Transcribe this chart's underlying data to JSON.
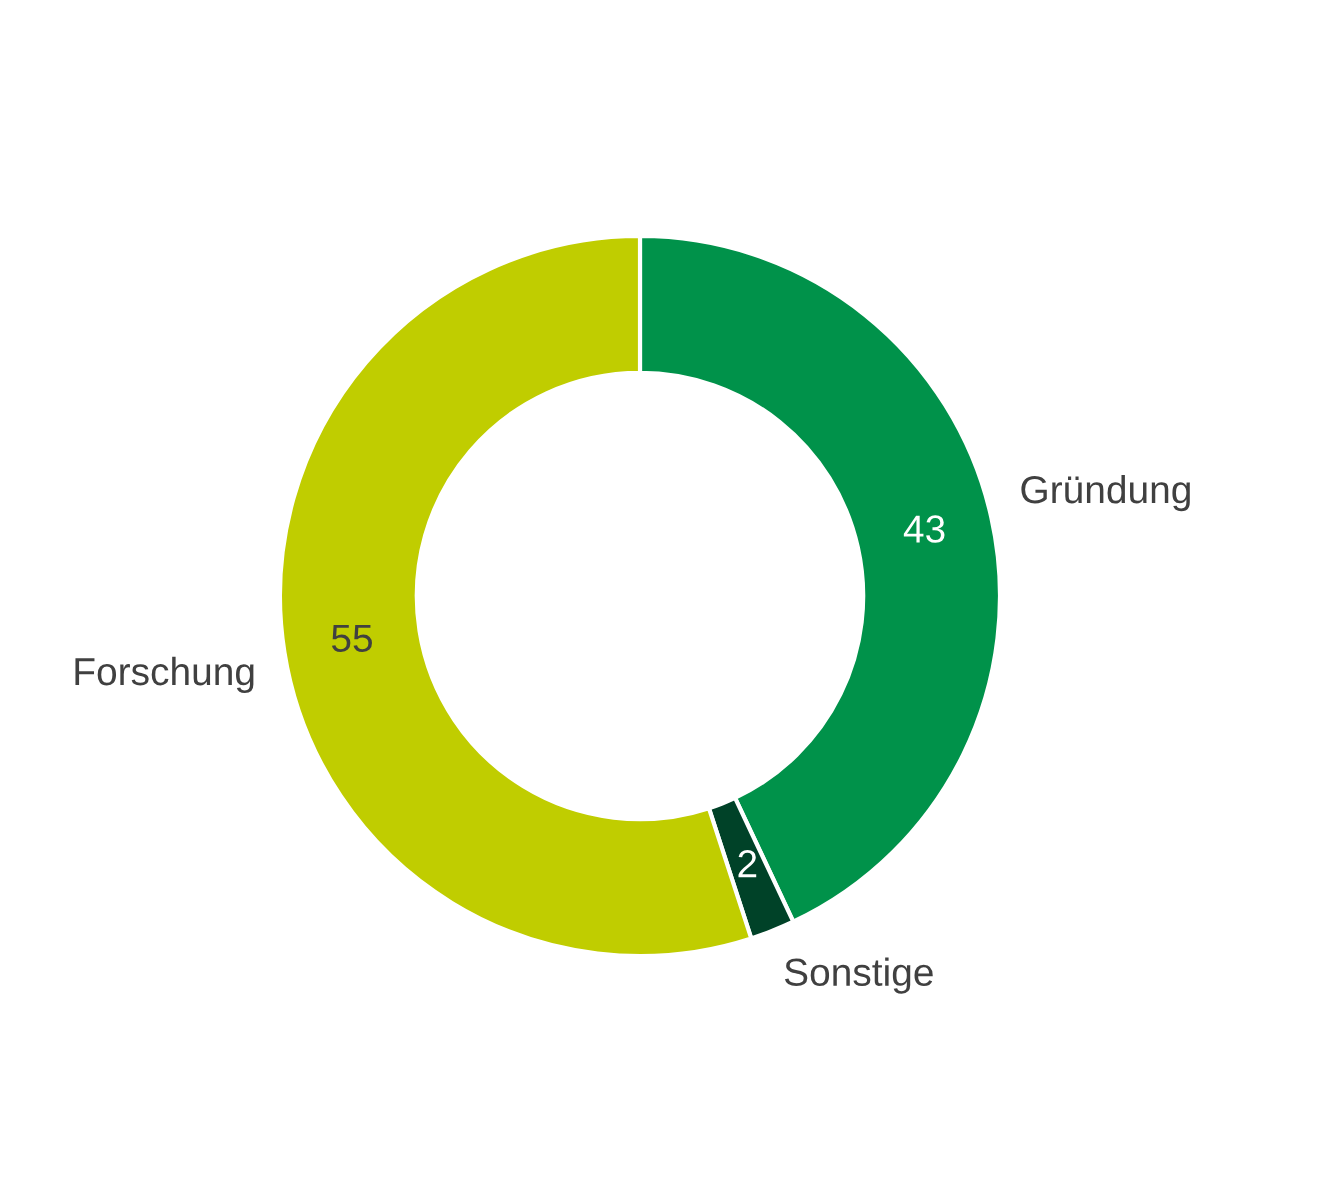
{
  "chart_data": {
    "type": "donut",
    "categories": [
      "Gründung",
      "Sonstige",
      "Forschung"
    ],
    "values": [
      43,
      2,
      55
    ],
    "colors": [
      "#00924a",
      "#004228",
      "#c0cd00"
    ],
    "data_labels": true,
    "legend": false
  }
}
